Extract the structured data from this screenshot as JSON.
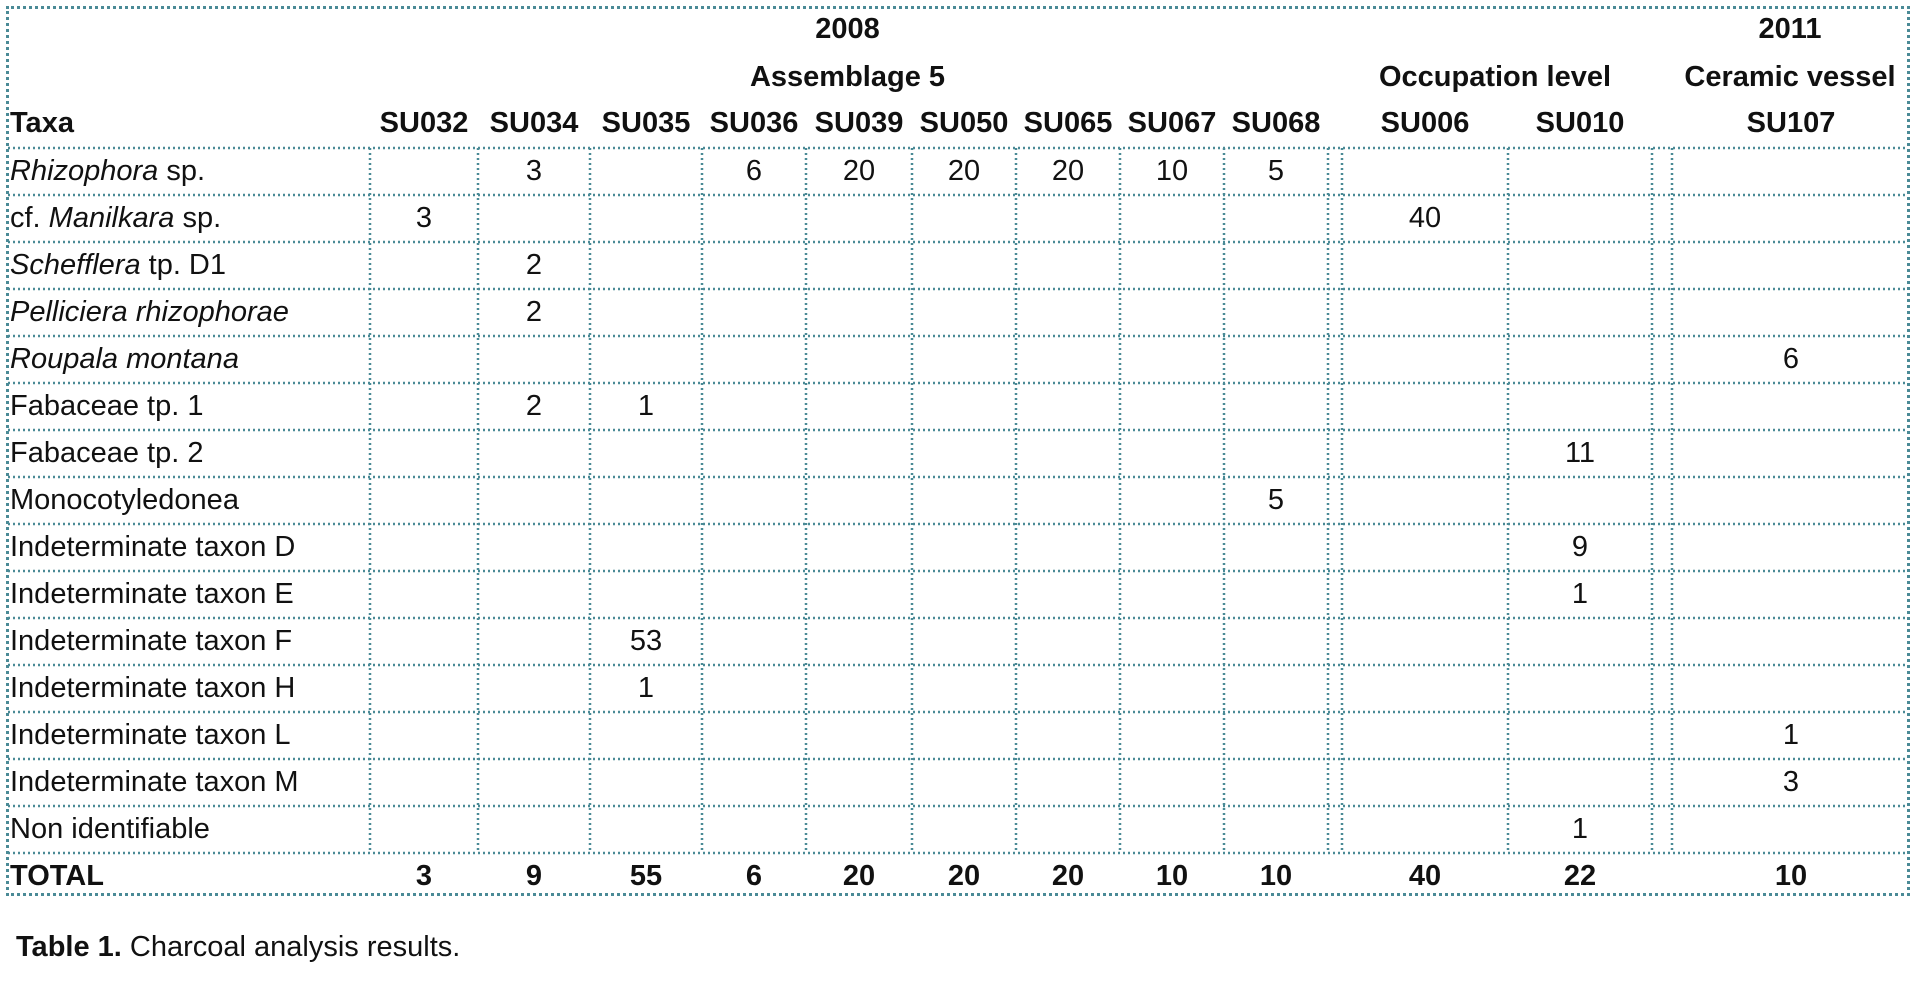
{
  "header": {
    "year_2008": "2008",
    "group_assemblage": "Assemblage 5",
    "group_occupation": "Occupation level",
    "year_2011": "2011",
    "group_ceramic": "Ceramic vessel",
    "taxa_label": "Taxa",
    "columns": [
      "SU032",
      "SU034",
      "SU035",
      "SU036",
      "SU039",
      "SU050",
      "SU065",
      "SU067",
      "SU068",
      "SU006",
      "SU010",
      "SU107"
    ]
  },
  "rows": [
    {
      "name_parts": [
        {
          "t": "Rhizophora",
          "i": true
        },
        {
          "t": " sp.",
          "i": false
        }
      ],
      "values": [
        "",
        "3",
        "",
        "6",
        "20",
        "20",
        "20",
        "10",
        "5",
        "",
        "",
        ""
      ]
    },
    {
      "name_parts": [
        {
          "t": "cf. ",
          "i": false
        },
        {
          "t": "Manilkara",
          "i": true
        },
        {
          "t": " sp.",
          "i": false
        }
      ],
      "values": [
        "3",
        "",
        "",
        "",
        "",
        "",
        "",
        "",
        "",
        "40",
        "",
        ""
      ]
    },
    {
      "name_parts": [
        {
          "t": "Schefflera",
          "i": true
        },
        {
          "t": " tp. D1",
          "i": false
        }
      ],
      "values": [
        "",
        "2",
        "",
        "",
        "",
        "",
        "",
        "",
        "",
        "",
        "",
        ""
      ]
    },
    {
      "name_parts": [
        {
          "t": "Pelliciera rhizophorae",
          "i": true
        }
      ],
      "values": [
        "",
        "2",
        "",
        "",
        "",
        "",
        "",
        "",
        "",
        "",
        "",
        ""
      ]
    },
    {
      "name_parts": [
        {
          "t": "Roupala montana",
          "i": true
        }
      ],
      "values": [
        "",
        "",
        "",
        "",
        "",
        "",
        "",
        "",
        "",
        "",
        "",
        "6"
      ]
    },
    {
      "name_parts": [
        {
          "t": "Fabaceae tp. 1",
          "i": false
        }
      ],
      "values": [
        "",
        "2",
        "1",
        "",
        "",
        "",
        "",
        "",
        "",
        "",
        "",
        ""
      ]
    },
    {
      "name_parts": [
        {
          "t": "Fabaceae tp. 2",
          "i": false
        }
      ],
      "values": [
        "",
        "",
        "",
        "",
        "",
        "",
        "",
        "",
        "",
        "",
        "11",
        ""
      ]
    },
    {
      "name_parts": [
        {
          "t": "Monocotyledonea",
          "i": false
        }
      ],
      "values": [
        "",
        "",
        "",
        "",
        "",
        "",
        "",
        "",
        "5",
        "",
        "",
        ""
      ]
    },
    {
      "name_parts": [
        {
          "t": "Indeterminate taxon D",
          "i": false
        }
      ],
      "values": [
        "",
        "",
        "",
        "",
        "",
        "",
        "",
        "",
        "",
        "",
        "9",
        ""
      ]
    },
    {
      "name_parts": [
        {
          "t": "Indeterminate taxon E",
          "i": false
        }
      ],
      "values": [
        "",
        "",
        "",
        "",
        "",
        "",
        "",
        "",
        "",
        "",
        "1",
        ""
      ]
    },
    {
      "name_parts": [
        {
          "t": "Indeterminate taxon F",
          "i": false
        }
      ],
      "values": [
        "",
        "",
        "53",
        "",
        "",
        "",
        "",
        "",
        "",
        "",
        "",
        ""
      ]
    },
    {
      "name_parts": [
        {
          "t": "Indeterminate taxon H",
          "i": false
        }
      ],
      "values": [
        "",
        "",
        "1",
        "",
        "",
        "",
        "",
        "",
        "",
        "",
        "",
        ""
      ]
    },
    {
      "name_parts": [
        {
          "t": "Indeterminate taxon L",
          "i": false
        }
      ],
      "values": [
        "",
        "",
        "",
        "",
        "",
        "",
        "",
        "",
        "",
        "",
        "",
        "1"
      ]
    },
    {
      "name_parts": [
        {
          "t": "Indeterminate taxon M",
          "i": false
        }
      ],
      "values": [
        "",
        "",
        "",
        "",
        "",
        "",
        "",
        "",
        "",
        "",
        "",
        "3"
      ]
    },
    {
      "name_parts": [
        {
          "t": "Non identifiable",
          "i": false
        }
      ],
      "values": [
        "",
        "",
        "",
        "",
        "",
        "",
        "",
        "",
        "",
        "",
        "1",
        ""
      ]
    }
  ],
  "total": {
    "label": "TOTAL",
    "values": [
      "3",
      "9",
      "55",
      "6",
      "20",
      "20",
      "20",
      "10",
      "10",
      "40",
      "22",
      "10"
    ]
  },
  "caption": {
    "label": "Table 1.",
    "text": " Charcoal analysis results."
  },
  "colors": {
    "grid": "#4a8a96"
  }
}
